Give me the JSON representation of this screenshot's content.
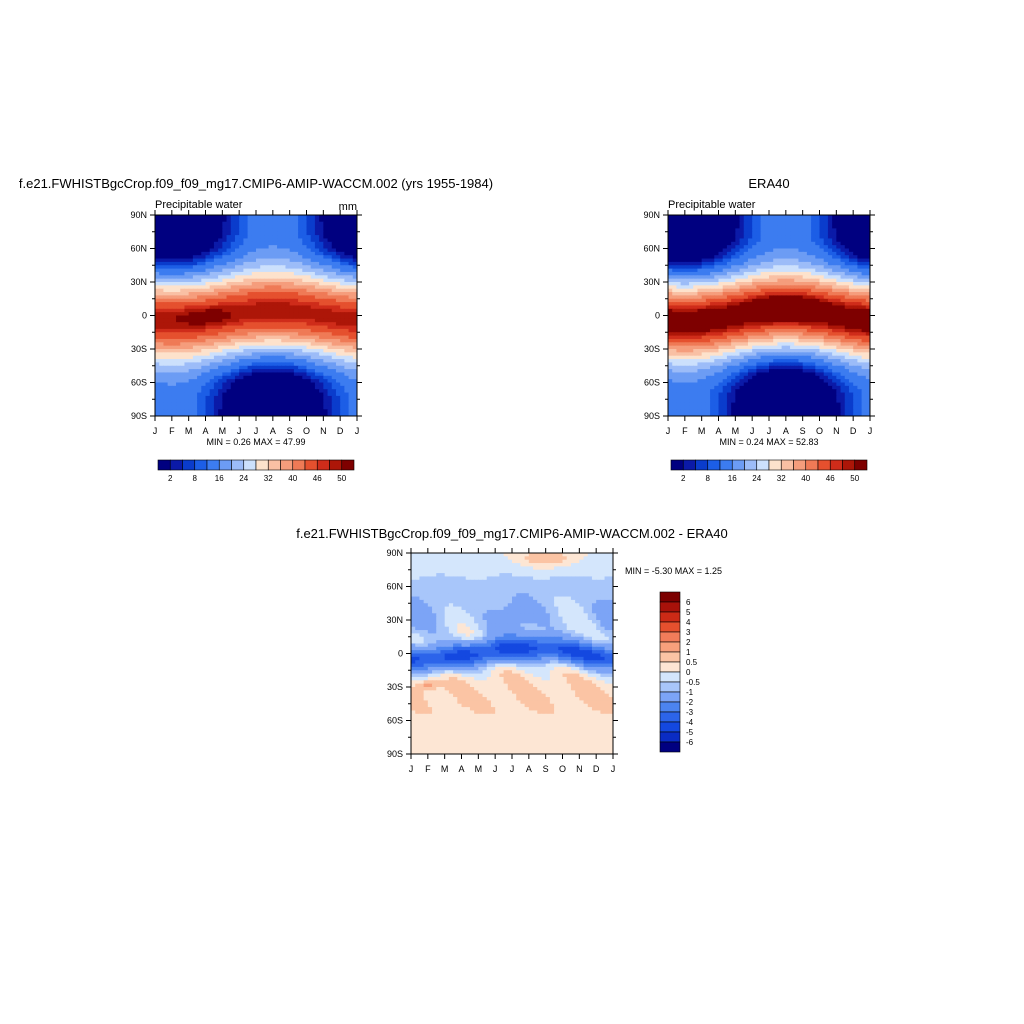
{
  "colors": {
    "abs_levels": [
      "#000080",
      "#0b1aa8",
      "#0a3ccc",
      "#1c5ee6",
      "#3c7cf0",
      "#6c9cf4",
      "#9cbcf8",
      "#cce0fc",
      "#fde2cc",
      "#f9c0a4",
      "#f59d7c",
      "#ef7a56",
      "#e5502e",
      "#cf2c1a",
      "#ad1608",
      "#7e0000"
    ],
    "diff_levels": [
      "#000080",
      "#0a2cc4",
      "#1448e0",
      "#2c64ea",
      "#4c84f0",
      "#7ca4f6",
      "#a8c6fa",
      "#d4e6fc",
      "#fde6d4",
      "#fbc4a4",
      "#f7a07c",
      "#f17c5a",
      "#e5502e",
      "#cc2a16",
      "#a8120a",
      "#7c0000"
    ]
  },
  "chart_data": [
    {
      "type": "heatmap",
      "title": "f.e21.FWHISTBgcCrop.f09_f09_mg17.CMIP6-AMIP-WACCM.002 (yrs 1955-1984)",
      "subtitle_left": "Precipitable water",
      "subtitle_right": "mm",
      "xlabel": "",
      "ylabel": "",
      "x_ticks": [
        "J",
        "F",
        "M",
        "A",
        "M",
        "J",
        "J",
        "A",
        "S",
        "O",
        "N",
        "D",
        "J"
      ],
      "y_ticks": [
        "90N",
        "60N",
        "30N",
        "0",
        "30S",
        "60S",
        "90S"
      ],
      "ylim": [
        -90,
        90
      ],
      "stats": "MIN =   0.26 MAX =  47.99",
      "stats_min": 0.26,
      "stats_max": 47.99,
      "colorbar_labels": [
        "2",
        "8",
        "16",
        "24",
        "32",
        "40",
        "46",
        "50"
      ],
      "colorbar_levels": [
        2,
        4,
        6,
        8,
        12,
        16,
        20,
        24,
        28,
        32,
        36,
        40,
        44,
        46,
        48,
        50
      ],
      "grid": false
    },
    {
      "type": "heatmap",
      "title": "ERA40",
      "subtitle_left": "Precipitable water",
      "subtitle_right": "",
      "xlabel": "",
      "ylabel": "",
      "x_ticks": [
        "J",
        "F",
        "M",
        "A",
        "M",
        "J",
        "J",
        "A",
        "S",
        "O",
        "N",
        "D",
        "J"
      ],
      "y_ticks": [
        "90N",
        "60N",
        "30N",
        "0",
        "30S",
        "60S",
        "90S"
      ],
      "ylim": [
        -90,
        90
      ],
      "stats": "MIN =   0.24 MAX =  52.83",
      "stats_min": 0.24,
      "stats_max": 52.83,
      "colorbar_labels": [
        "2",
        "8",
        "16",
        "24",
        "32",
        "40",
        "46",
        "50"
      ],
      "colorbar_levels": [
        2,
        4,
        6,
        8,
        12,
        16,
        20,
        24,
        28,
        32,
        36,
        40,
        44,
        46,
        48,
        50
      ],
      "grid": false
    },
    {
      "type": "heatmap",
      "title": "f.e21.FWHISTBgcCrop.f09_f09_mg17.CMIP6-AMIP-WACCM.002 - ERA40",
      "subtitle_left": "",
      "subtitle_right": "",
      "xlabel": "",
      "ylabel": "",
      "x_ticks": [
        "J",
        "F",
        "M",
        "A",
        "M",
        "J",
        "J",
        "A",
        "S",
        "O",
        "N",
        "D",
        "J"
      ],
      "y_ticks": [
        "90N",
        "60N",
        "30N",
        "0",
        "30S",
        "60S",
        "90S"
      ],
      "ylim": [
        -90,
        90
      ],
      "stats": "MIN =  -5.30 MAX =   1.25",
      "stats_min": -5.3,
      "stats_max": 1.25,
      "colorbar_labels": [
        "6",
        "5",
        "4",
        "3",
        "2",
        "1",
        "0.5",
        "0",
        "-0.5",
        "-1",
        "-2",
        "-3",
        "-4",
        "-5",
        "-6"
      ],
      "colorbar_levels": [
        -6,
        -5,
        -4,
        -3,
        -2,
        -1,
        -0.5,
        0,
        0.5,
        1,
        2,
        3,
        4,
        5,
        6
      ],
      "grid": false
    }
  ]
}
